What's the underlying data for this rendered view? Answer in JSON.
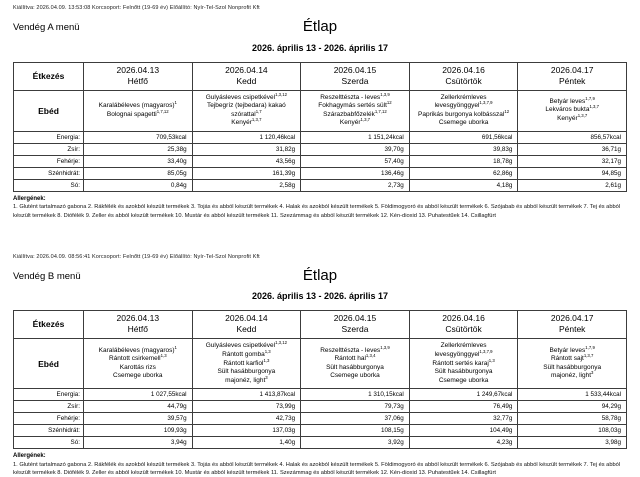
{
  "pages": [
    {
      "meta_line": "Kiállítva: 2026.04.09. 13:53:08 Korcsoport: Felnőtt (19-69 év) Előállító: Nyír-Tel-Szol Nonprofit Kft",
      "menu_name": "Vendég A menü",
      "title": "Étlap",
      "date_range": "2026. április 13 - 2026. április 17",
      "table": {
        "corner_header": "Étkezés",
        "meal_label": "Ebéd",
        "columns": [
          {
            "date": "2026.04.13",
            "day": "Hétfő"
          },
          {
            "date": "2026.04.14",
            "day": "Kedd"
          },
          {
            "date": "2026.04.15",
            "day": "Szerda"
          },
          {
            "date": "2026.04.16",
            "day": "Csütörtök"
          },
          {
            "date": "2026.04.17",
            "day": "Péntek"
          }
        ],
        "menu_items": [
          [
            {
              "text": "Karalábéleves (magyaros)",
              "sup": "1"
            },
            {
              "text": "Bolognai spagetti",
              "sup": "1,7,12"
            }
          ],
          [
            {
              "text": "Gulyásleves csipetkével",
              "sup": "1,3,12"
            },
            {
              "text": "Tejbegríz (tejbedara) kakaó szórattal",
              "sup": "1,7"
            },
            {
              "text": "Kenyér",
              "sup": "1,3,7"
            }
          ],
          [
            {
              "text": "Reszelttészta - leves",
              "sup": "1,3,9"
            },
            {
              "text": "Fokhagymás sertés sült",
              "sup": "12"
            },
            {
              "text": "Szárazbabfőzelék",
              "sup": "1,7,12"
            },
            {
              "text": "Kenyér",
              "sup": "1,3,7"
            }
          ],
          [
            {
              "text": "Zellerkrémleves levesgyönggyel",
              "sup": "1,3,7,9"
            },
            {
              "text": "Paprikás burgonya kolbásszal",
              "sup": "12"
            },
            {
              "text": "Csemege uborka",
              "sup": ""
            }
          ],
          [
            {
              "text": "Betyár leves",
              "sup": "1,7,9"
            },
            {
              "text": "Lekváros bukta",
              "sup": "1,3,7"
            },
            {
              "text": "Kenyér",
              "sup": "1,3,7"
            }
          ]
        ],
        "nutrition": [
          {
            "label": "Energia:",
            "values": [
              "709,53kcal",
              "1 120,46kcal",
              "1 151,24kcal",
              "691,56kcal",
              "856,57kcal"
            ]
          },
          {
            "label": "Zsír:",
            "values": [
              "25,38g",
              "31,82g",
              "39,70g",
              "39,83g",
              "36,71g"
            ]
          },
          {
            "label": "Fehérje:",
            "values": [
              "33,40g",
              "43,56g",
              "57,40g",
              "18,78g",
              "32,17g"
            ]
          },
          {
            "label": "Szénhidrát:",
            "values": [
              "85,05g",
              "161,39g",
              "136,46g",
              "62,86g",
              "94,85g"
            ]
          },
          {
            "label": "Só:",
            "values": [
              "0,84g",
              "2,58g",
              "2,73g",
              "4,18g",
              "2,61g"
            ]
          }
        ]
      },
      "allergens": {
        "heading": "Allergének:",
        "text": "1. Glutént tartalmazó gabona 2. Rákfélék és azokból készült termékek 3. Tojás és abból készült termékek 4. Halak és azokból készült termékek 5. Földimogyoró és abból készült termékek 6. Szójabab és abból készült termékek 7. Tej és abból készült termékek 8. Diófélék 9. Zeller és abból készült termékek 10. Mustár és abból készült termékek 11. Szezámmag és abból készült termékek 12. Kén-dioxid 13. Puhatestűek 14. Csillagfürt"
      }
    },
    {
      "meta_line": "Kiállítva: 2026.04.09. 08:56:41 Korcsoport: Felnőtt (19-69 év) Előállító: Nyír-Tel-Szol Nonprofit Kft",
      "menu_name": "Vendég B menü",
      "title": "Étlap",
      "date_range": "2026. április 13 - 2026. április 17",
      "table": {
        "corner_header": "Étkezés",
        "meal_label": "Ebéd",
        "columns": [
          {
            "date": "2026.04.13",
            "day": "Hétfő"
          },
          {
            "date": "2026.04.14",
            "day": "Kedd"
          },
          {
            "date": "2026.04.15",
            "day": "Szerda"
          },
          {
            "date": "2026.04.16",
            "day": "Csütörtök"
          },
          {
            "date": "2026.04.17",
            "day": "Péntek"
          }
        ],
        "menu_items": [
          [
            {
              "text": "Karalábéleves (magyaros)",
              "sup": "1"
            },
            {
              "text": "Rántott csirkemell",
              "sup": "1,3"
            },
            {
              "text": "Karottás rizs",
              "sup": ""
            },
            {
              "text": "Csemege uborka",
              "sup": ""
            }
          ],
          [
            {
              "text": "Gulyásleves csipetkével",
              "sup": "1,3,12"
            },
            {
              "text": "Rántott gomba",
              "sup": "1,3"
            },
            {
              "text": "Rántott karfiol",
              "sup": "1,3"
            },
            {
              "text": "Sült hasábburgonya",
              "sup": ""
            },
            {
              "text": "majonéz, light",
              "sup": "3"
            }
          ],
          [
            {
              "text": "Reszelttészta - leves",
              "sup": "1,3,9"
            },
            {
              "text": "Rántott hal",
              "sup": "1,3,4"
            },
            {
              "text": "Sült hasábburgonya",
              "sup": ""
            },
            {
              "text": "Csemege uborka",
              "sup": ""
            }
          ],
          [
            {
              "text": "Zellerkrémleves levesgyönggyel",
              "sup": "1,3,7,9"
            },
            {
              "text": "Rántott sertés karaj",
              "sup": "1,3"
            },
            {
              "text": "Sült hasábburgonya",
              "sup": ""
            },
            {
              "text": "Csemege uborka",
              "sup": ""
            }
          ],
          [
            {
              "text": "Betyár leves",
              "sup": "1,7,9"
            },
            {
              "text": "Rántott sajt",
              "sup": "1,3,7"
            },
            {
              "text": "Sült hasábburgonya",
              "sup": ""
            },
            {
              "text": "majonéz, light",
              "sup": "3"
            }
          ]
        ],
        "nutrition": [
          {
            "label": "Energia:",
            "values": [
              "1 027,55kcal",
              "1 413,87kcal",
              "1 310,15kcal",
              "1 249,67kcal",
              "1 533,44kcal"
            ]
          },
          {
            "label": "Zsír:",
            "values": [
              "44,79g",
              "73,99g",
              "79,73g",
              "76,49g",
              "94,29g"
            ]
          },
          {
            "label": "Fehérje:",
            "values": [
              "39,57g",
              "42,73g",
              "37,06g",
              "32,77g",
              "58,78g"
            ]
          },
          {
            "label": "Szénhidrát:",
            "values": [
              "109,93g",
              "137,03g",
              "108,15g",
              "104,49g",
              "108,03g"
            ]
          },
          {
            "label": "Só:",
            "values": [
              "3,94g",
              "1,40g",
              "3,92g",
              "4,23g",
              "3,98g"
            ]
          }
        ]
      },
      "allergens": {
        "heading": "Allergének:",
        "text": "1. Glutént tartalmazó gabona 2. Rákfélék és azokból készült termékek 3. Tojás és abból készült termékek 4. Halak és azokból készült termékek 5. Földimogyoró és abból készült termékek 6. Szójabab és abból készült termékek 7. Tej és abból készült termékek 8. Diófélék 9. Zeller és abból készült termékek 10. Mustár és abból készült termékek 11. Szezámmag és abból készült termékek 12. Kén-dioxid 13. Puhatestűek 14. Csillagfürt"
      }
    }
  ]
}
